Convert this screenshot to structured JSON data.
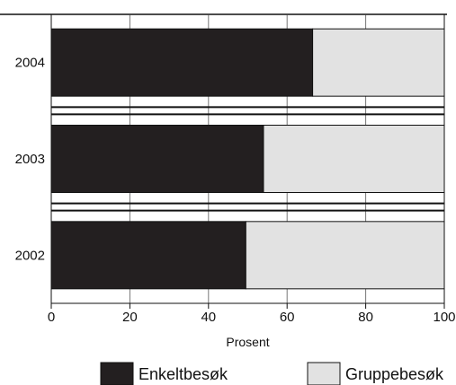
{
  "chart_data": {
    "type": "bar",
    "orientation": "horizontal",
    "stacked": true,
    "percent": true,
    "categories": [
      "2004",
      "2003",
      "2002"
    ],
    "series": [
      {
        "name": "Enkeltbesøk",
        "values": [
          66.5,
          54,
          49.5
        ],
        "color": "#231f20"
      },
      {
        "name": "Gruppebesøk",
        "values": [
          33.5,
          46,
          50.5
        ],
        "color": "#e2e2e2"
      }
    ],
    "xlabel": "Prosent",
    "ylabel": "",
    "xlim": [
      0,
      100
    ],
    "xticks": [
      "0",
      "20",
      "40",
      "60",
      "80",
      "100"
    ],
    "grid": "vertical",
    "legend_position": "bottom"
  }
}
